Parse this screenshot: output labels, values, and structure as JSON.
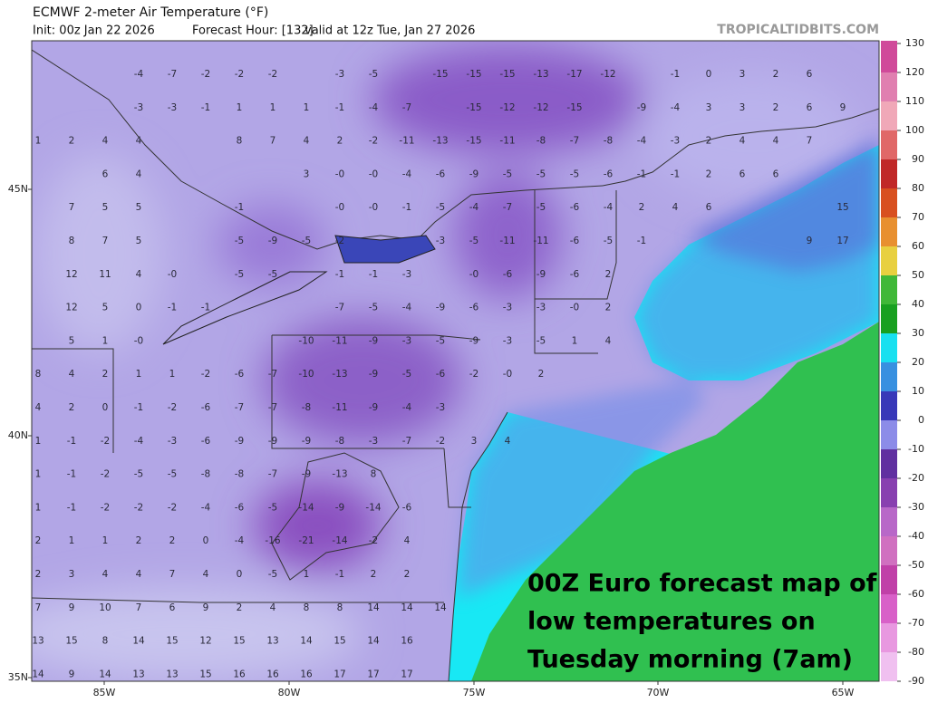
{
  "header": {
    "title": "ECMWF 2-meter Air Temperature (°F)",
    "init": "Init: 00z Jan 22 2026",
    "forecast_hour": "Forecast Hour: [132]",
    "valid": "valid at 12z Tue, Jan 27 2026",
    "site": "TROPICALTIDBITS.COM"
  },
  "map": {
    "lat_labels": [
      "45N",
      "40N",
      "35N"
    ],
    "lon_labels": [
      "85W",
      "80W",
      "75W",
      "70W",
      "65W"
    ],
    "temperature_grid": [
      [
        null,
        null,
        null,
        -4,
        -7,
        -2,
        -2,
        -2,
        null,
        -3,
        -5,
        null,
        -15,
        -15,
        -15,
        -13,
        -17,
        -12,
        null,
        -1,
        0,
        3,
        2,
        6
      ],
      [
        null,
        null,
        null,
        -3,
        -3,
        -1,
        1,
        1,
        1,
        -1,
        -4,
        -7,
        null,
        -15,
        -12,
        -12,
        -15,
        null,
        -9,
        -4,
        3,
        3,
        2,
        6,
        9
      ],
      [
        1,
        2,
        4,
        4,
        null,
        null,
        8,
        7,
        4,
        2,
        -2,
        -11,
        -13,
        -15,
        -11,
        -8,
        -7,
        -8,
        -4,
        -3,
        2,
        4,
        4,
        7
      ],
      [
        null,
        null,
        6,
        4,
        null,
        null,
        null,
        null,
        3,
        {
          "value": 0,
          "label": "-0"
        },
        {
          "value": 0,
          "label": "-0"
        },
        -4,
        -6,
        -9,
        -5,
        -5,
        -5,
        -6,
        -1,
        -1,
        2,
        6,
        6
      ],
      [
        null,
        7,
        5,
        5,
        null,
        null,
        -1,
        null,
        null,
        {
          "value": 0,
          "label": "-0"
        },
        {
          "value": 0,
          "label": "-0"
        },
        -1,
        -5,
        -4,
        -7,
        -5,
        -6,
        -4,
        2,
        4,
        6,
        null,
        null,
        null,
        15
      ],
      [
        null,
        8,
        7,
        5,
        null,
        null,
        -5,
        -9,
        -5,
        -2,
        null,
        null,
        -3,
        -5,
        -11,
        -11,
        -6,
        -5,
        -1,
        null,
        null,
        null,
        null,
        9,
        17
      ],
      [
        null,
        12,
        11,
        4,
        {
          "value": 0,
          "label": "-0"
        },
        null,
        -5,
        -5,
        null,
        -1,
        -1,
        -3,
        null,
        {
          "value": 0,
          "label": "-0"
        },
        -6,
        -9,
        -6,
        2
      ],
      [
        null,
        12,
        5,
        0,
        -1,
        -1,
        null,
        null,
        null,
        -7,
        -5,
        -4,
        -9,
        -6,
        -3,
        -3,
        {
          "value": 0,
          "label": "-0"
        },
        2
      ],
      [
        null,
        5,
        1,
        {
          "value": 0,
          "label": "-0"
        },
        null,
        null,
        null,
        null,
        -10,
        -11,
        -9,
        -3,
        -5,
        -9,
        -3,
        -5,
        1,
        4
      ],
      [
        8,
        4,
        2,
        1,
        1,
        -2,
        -6,
        -7,
        -10,
        -13,
        -9,
        -5,
        -6,
        -2,
        {
          "value": 0,
          "label": "-0"
        },
        2
      ],
      [
        4,
        2,
        0,
        -1,
        -2,
        -6,
        -7,
        -7,
        -8,
        -11,
        -9,
        -4,
        -3
      ],
      [
        1,
        -1,
        -2,
        -4,
        -3,
        -6,
        -9,
        -9,
        -9,
        -8,
        -3,
        -7,
        -2,
        3,
        4
      ],
      [
        1,
        -1,
        -2,
        -5,
        -5,
        -8,
        -8,
        -7,
        -9,
        -13,
        8
      ],
      [
        1,
        -1,
        -2,
        -2,
        -2,
        -4,
        -6,
        -5,
        -14,
        -9,
        -14,
        -6
      ],
      [
        2,
        1,
        1,
        2,
        2,
        0,
        -4,
        -16,
        -21,
        -14,
        -2,
        4
      ],
      [
        2,
        3,
        4,
        4,
        7,
        4,
        0,
        -5,
        1,
        -1,
        2,
        2
      ],
      [
        7,
        9,
        10,
        7,
        6,
        9,
        2,
        4,
        8,
        8,
        14,
        14,
        14
      ],
      [
        13,
        15,
        8,
        14,
        15,
        12,
        15,
        13,
        14,
        15,
        14,
        16
      ],
      [
        14,
        9,
        14,
        13,
        13,
        15,
        16,
        16,
        16,
        17,
        17,
        17
      ]
    ]
  },
  "colorbar": {
    "ticks": [
      130,
      120,
      110,
      100,
      90,
      80,
      70,
      60,
      50,
      40,
      30,
      20,
      10,
      0,
      -10,
      -20,
      -30,
      -40,
      -50,
      -60,
      -70,
      -80,
      -90
    ],
    "colors": [
      "#d04a9a",
      "#e07fb0",
      "#f0a8b8",
      "#e06868",
      "#c02828",
      "#d85020",
      "#e89030",
      "#e8d040",
      "#40b838",
      "#18a020",
      "#18e0f0",
      "#3890e0",
      "#3838b8",
      "#8c8ce8",
      "#6030a0",
      "#8840b0",
      "#b868c8",
      "#d070c0",
      "#c040a8",
      "#d860c8",
      "#e898e0",
      "#f0c0f0"
    ]
  },
  "annotation": {
    "lines": [
      "00Z Euro forecast map of",
      "low temperatures on",
      "Tuesday morning (7am)"
    ]
  }
}
